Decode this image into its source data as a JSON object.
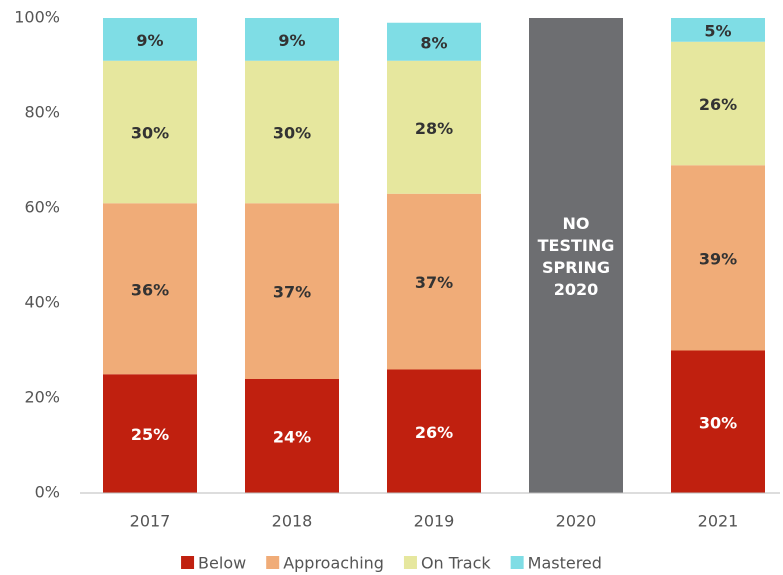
{
  "chart_data": {
    "type": "stacked_bar",
    "categories": [
      "2017",
      "2018",
      "2019",
      "2020",
      "2021"
    ],
    "series": [
      {
        "name": "Below",
        "color": "#c0200f",
        "values": [
          25,
          24,
          26,
          null,
          30
        ],
        "value_labels": [
          "25%",
          "24%",
          "26%",
          null,
          "30%"
        ]
      },
      {
        "name": "Approaching",
        "color": "#f0ac78",
        "values": [
          36,
          37,
          37,
          null,
          39
        ],
        "value_labels": [
          "36%",
          "37%",
          "37%",
          null,
          "39%"
        ]
      },
      {
        "name": "On Track",
        "color": "#e6e79e",
        "values": [
          30,
          30,
          28,
          null,
          26
        ],
        "value_labels": [
          "30%",
          "30%",
          "28%",
          null,
          "26%"
        ]
      },
      {
        "name": "Mastered",
        "color": "#7fdde5",
        "values": [
          9,
          9,
          8,
          null,
          5
        ],
        "value_labels": [
          "9%",
          "9%",
          "8%",
          null,
          "5%"
        ]
      }
    ],
    "annotation": {
      "category": "2020",
      "color": "#6d6e71",
      "lines": [
        "NO",
        "TESTING",
        "SPRING",
        "2020"
      ]
    },
    "ylim": [
      0,
      100
    ],
    "yticks": [
      {
        "value": 0,
        "label": "0%"
      },
      {
        "value": 20,
        "label": "20%"
      },
      {
        "value": 40,
        "label": "40%"
      },
      {
        "value": 60,
        "label": "60%"
      },
      {
        "value": 80,
        "label": "80%"
      },
      {
        "value": 100,
        "label": "100%"
      }
    ],
    "grid": false,
    "legend": "bottom"
  }
}
